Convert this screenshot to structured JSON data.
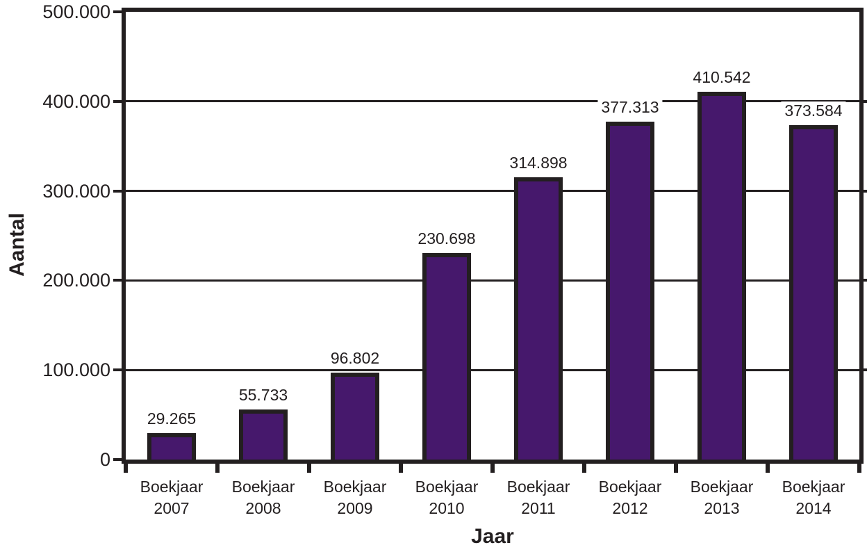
{
  "chart_data": {
    "type": "bar",
    "title": "",
    "xlabel": "Jaar",
    "ylabel": "Aantal",
    "categories": [
      "Boekjaar 2007",
      "Boekjaar 2008",
      "Boekjaar 2009",
      "Boekjaar 2010",
      "Boekjaar 2011",
      "Boekjaar 2012",
      "Boekjaar 2013",
      "Boekjaar 2014"
    ],
    "values": [
      29265,
      55733,
      96802,
      230698,
      314898,
      377313,
      410542,
      373584
    ],
    "value_labels": [
      "29.265",
      "55.733",
      "96.802",
      "230.698",
      "314.898",
      "377.313",
      "410.542",
      "373.584"
    ],
    "ylim": [
      0,
      500000
    ],
    "ytick_values": [
      0,
      100000,
      200000,
      300000,
      400000,
      500000
    ],
    "ytick_labels": [
      "0",
      "100.000",
      "200.000",
      "300.000",
      "400.000",
      "500.000"
    ],
    "grid": true,
    "legend": false,
    "colors": {
      "bar_fill": "#46186C",
      "line": "#231F20",
      "text": "#231F20",
      "background": "#FFFFFF"
    }
  }
}
